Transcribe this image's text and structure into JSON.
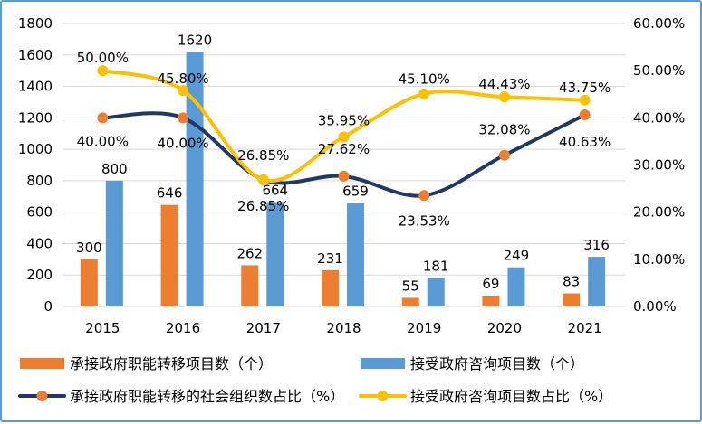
{
  "chart_data": {
    "type": "bar",
    "categories": [
      "2015",
      "2016",
      "2017",
      "2018",
      "2019",
      "2020",
      "2021"
    ],
    "y_left": {
      "ylim": [
        0,
        1800
      ],
      "ticks": [
        "0",
        "200",
        "400",
        "600",
        "800",
        "1000",
        "1200",
        "1400",
        "1600",
        "1800"
      ]
    },
    "y_right": {
      "ylim": [
        0,
        60
      ],
      "ticks": [
        "0.00%",
        "10.00%",
        "20.00%",
        "30.00%",
        "40.00%",
        "50.00%",
        "60.00%"
      ]
    },
    "grid": true,
    "legend_position": "bottom",
    "series": [
      {
        "name": "承接政府职能转移项目数（个）",
        "kind": "bar",
        "axis": "left",
        "color": "#ed7d31",
        "values": [
          300,
          646,
          262,
          231,
          55,
          69,
          83
        ],
        "labels": [
          "300",
          "646",
          "262",
          "231",
          "55",
          "69",
          "83"
        ]
      },
      {
        "name": "接受政府咨询项目数（个）",
        "kind": "bar",
        "axis": "right_of_pair",
        "color": "#5b9bd5",
        "values": [
          800,
          1620,
          664,
          659,
          181,
          249,
          316
        ],
        "labels": [
          "800",
          "1620",
          "664",
          "659",
          "181",
          "249",
          "316"
        ]
      },
      {
        "name": "承接政府职能转移的社会组织数占比（%）",
        "kind": "line",
        "axis": "right",
        "color": "#1f3864",
        "marker_color": "#ed7d31",
        "values": [
          40.0,
          40.0,
          26.85,
          27.62,
          23.53,
          32.08,
          40.63
        ],
        "labels": [
          "40.00%",
          "40.00%",
          "26.85%",
          "27.62%",
          "23.53%",
          "32.08%",
          "40.63%"
        ]
      },
      {
        "name": "接受政府咨询项目数占比（%）",
        "kind": "line",
        "axis": "right",
        "color": "#ffc000",
        "marker_color": "#ffc000",
        "values": [
          50.0,
          45.8,
          26.85,
          35.95,
          45.1,
          44.43,
          43.75
        ],
        "labels": [
          "50.00%",
          "45.80%",
          "26.85%",
          "35.95%",
          "45.10%",
          "44.43%",
          "43.75%"
        ]
      }
    ]
  }
}
